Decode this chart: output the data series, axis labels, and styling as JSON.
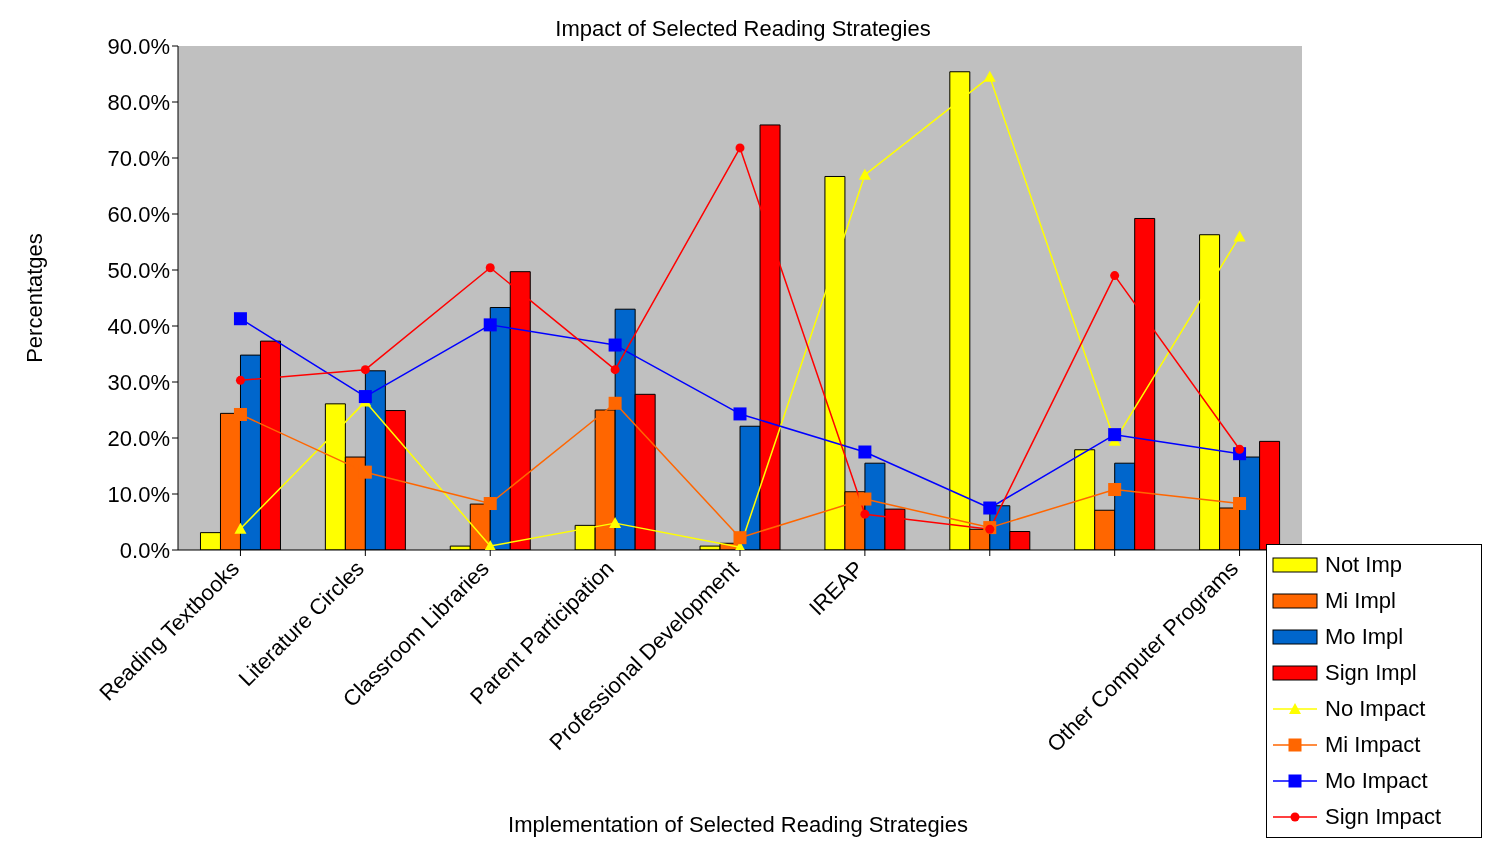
{
  "chart_data": {
    "type": "bar",
    "title": "Impact of Selected Reading Strategies",
    "xlabel": "Implementation of Selected Reading Strategies",
    "ylabel": "Percentatges",
    "categories": [
      "Reading Textbooks",
      "Literature Circles",
      "Classroom Libraries",
      "Parent Participation",
      "Professional Development",
      "IREAP",
      null,
      null,
      "Other Computer Programs"
    ],
    "series": [
      {
        "name": "Not Imp",
        "color": "#ffff00",
        "values": [
          3.1,
          26.1,
          0.7,
          4.4,
          0.7,
          66.7,
          85.4,
          17.9,
          56.3
        ]
      },
      {
        "name": "Mi Impl",
        "color": "#ff6600",
        "values": [
          24.4,
          16.6,
          8.2,
          25,
          1.2,
          10.4,
          3.7,
          7.1,
          7.5
        ]
      },
      {
        "name": "Mo Impl",
        "color": "#0066cc",
        "values": [
          34.8,
          32,
          43.3,
          43,
          22.1,
          15.5,
          7.9,
          15.5,
          16.6
        ]
      },
      {
        "name": "Sign Impl",
        "color": "#ff0000",
        "values": [
          37.3,
          24.9,
          49.7,
          27.8,
          75.9,
          7.3,
          3.3,
          59.2,
          19.4
        ]
      },
      {
        "name": "No Impact",
        "type": "line",
        "marker": "triangle",
        "color": "#ffff00",
        "values": [
          3.8,
          26.5,
          0.7,
          4.8,
          0.5,
          67,
          84.5,
          19.5,
          56
        ]
      },
      {
        "name": "Mi Impact",
        "type": "line",
        "marker": "square",
        "color": "#ff6600",
        "values": [
          24.2,
          13.9,
          8.3,
          26.2,
          2.2,
          9.1,
          4,
          10.8,
          8.3
        ]
      },
      {
        "name": "Mo Impact",
        "type": "line",
        "marker": "square",
        "color": "#0000ff",
        "values": [
          41.3,
          27.4,
          40.2,
          36.6,
          24.3,
          17.5,
          7.5,
          20.6,
          17.2
        ]
      },
      {
        "name": "Sign Impact",
        "type": "line",
        "marker": "circle",
        "color": "#ff0000",
        "values": [
          30.3,
          32.2,
          50.4,
          32.2,
          71.8,
          6.4,
          3.7,
          49,
          18
        ]
      }
    ],
    "ylim": [
      0,
      90
    ],
    "yticks": [
      {
        "value": 0,
        "label": "0.0%"
      },
      {
        "value": 10,
        "label": "10.0%"
      },
      {
        "value": 20,
        "label": "20.0%"
      },
      {
        "value": 30,
        "label": "30.0%"
      },
      {
        "value": 40,
        "label": "40.0%"
      },
      {
        "value": 50,
        "label": "50.0%"
      },
      {
        "value": 60,
        "label": "60.0%"
      },
      {
        "value": 70,
        "label": "70.0%"
      },
      {
        "value": 80,
        "label": "80.0%"
      },
      {
        "value": 90,
        "label": "90.0%"
      }
    ],
    "grid": false,
    "legend": "bottom right"
  }
}
